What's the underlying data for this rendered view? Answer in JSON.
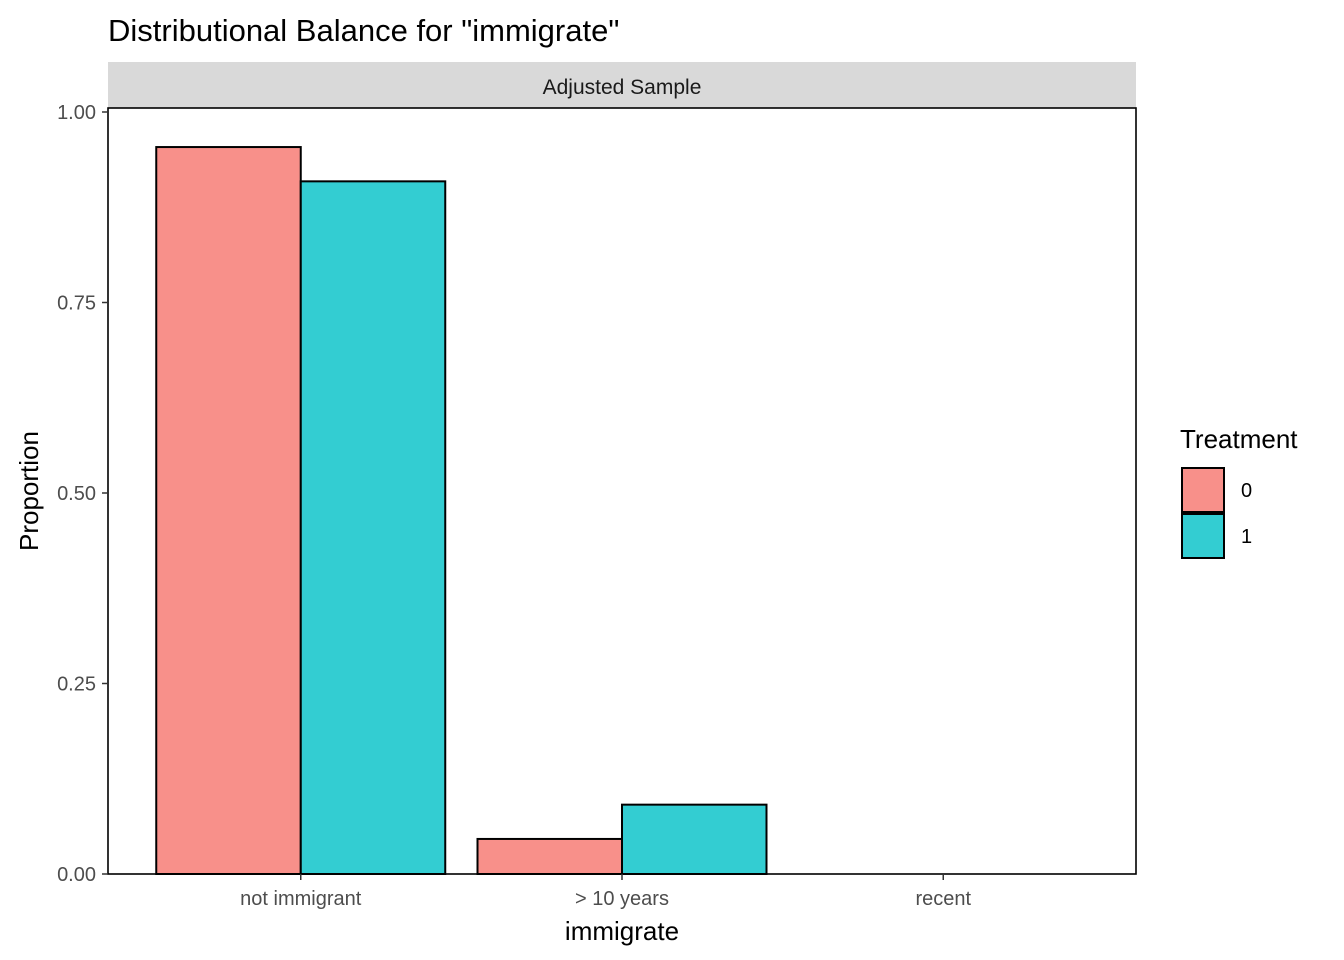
{
  "chart_data": {
    "type": "bar",
    "title": "Distributional Balance for \"immigrate\"",
    "facet_label": "Adjusted Sample",
    "xlabel": "immigrate",
    "ylabel": "Proportion",
    "categories": [
      "not immigrant",
      "> 10 years",
      "recent"
    ],
    "series": [
      {
        "name": "0",
        "color": "#F8908A",
        "values": [
          0.954,
          0.046,
          0.0
        ]
      },
      {
        "name": "1",
        "color": "#33CDD2",
        "values": [
          0.909,
          0.091,
          0.0
        ]
      }
    ],
    "ylim": [
      0,
      1.0
    ],
    "yticks": [
      0,
      0.25,
      0.5,
      0.75,
      1.0
    ],
    "ytick_labels": [
      "0.00",
      "0.25",
      "0.50",
      "0.75",
      "1.00"
    ],
    "grid": false,
    "legend": {
      "title": "Treatment",
      "placement": "right",
      "entries": [
        "0",
        "1"
      ]
    }
  }
}
